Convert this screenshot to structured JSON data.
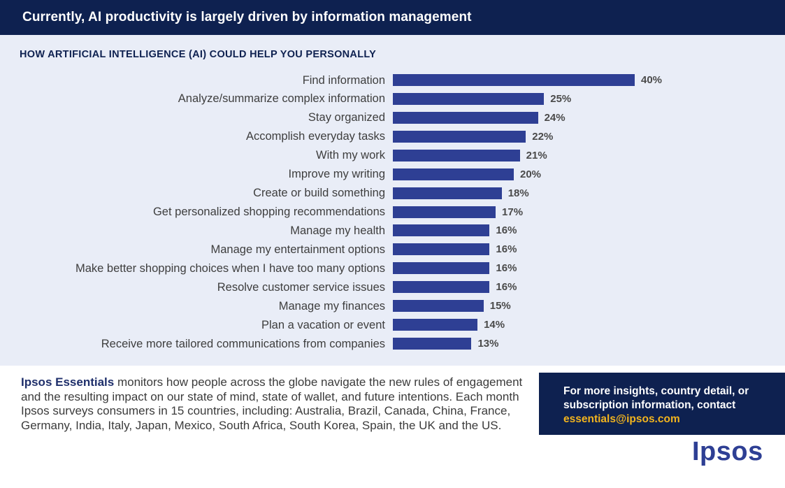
{
  "header": {
    "title": "Currently, AI productivity is largely driven by information management"
  },
  "chart_data": {
    "type": "bar",
    "orientation": "horizontal",
    "title": "HOW ARTIFICIAL INTELLIGENCE (AI) COULD HELP YOU PERSONALLY",
    "categories": [
      "Find information",
      "Analyze/summarize complex information",
      "Stay organized",
      "Accomplish everyday tasks",
      "With my work",
      "Improve my writing",
      "Create or build something",
      "Get personalized shopping recommendations",
      "Manage my health",
      "Manage my entertainment options",
      "Make better shopping choices when I have too many options",
      "Resolve customer service issues",
      "Manage my finances",
      "Plan a vacation or event",
      "Receive more tailored communications from companies"
    ],
    "values": [
      40,
      25,
      24,
      22,
      21,
      20,
      18,
      17,
      16,
      16,
      16,
      16,
      15,
      14,
      13
    ],
    "value_labels": [
      "40%",
      "25%",
      "24%",
      "22%",
      "21%",
      "20%",
      "18%",
      "17%",
      "16%",
      "16%",
      "16%",
      "16%",
      "15%",
      "14%",
      "13%"
    ],
    "xlim": [
      0,
      40
    ],
    "grid": false,
    "legend": "none",
    "bar_color": "#2e3f94"
  },
  "footer": {
    "brand": "Ipsos Essentials",
    "description": " monitors how people across the globe navigate the new rules of engagement and the resulting impact on our state of mind, state of wallet, and future intentions. Each month Ipsos surveys consumers in 15 countries, including: Australia, Brazil, Canada, China, France, Germany, India, Italy, Japan, Mexico, South Africa, South Korea, Spain, the UK and the US."
  },
  "contact": {
    "text": "For more insights, country detail, or subscription information, contact",
    "email": "essentials@ipsos.com"
  },
  "logo": {
    "text": "Ipsos"
  },
  "colors": {
    "header_bg": "#0e2150",
    "panel_bg": "#e9edf7",
    "accent_email": "#f2b41e"
  }
}
